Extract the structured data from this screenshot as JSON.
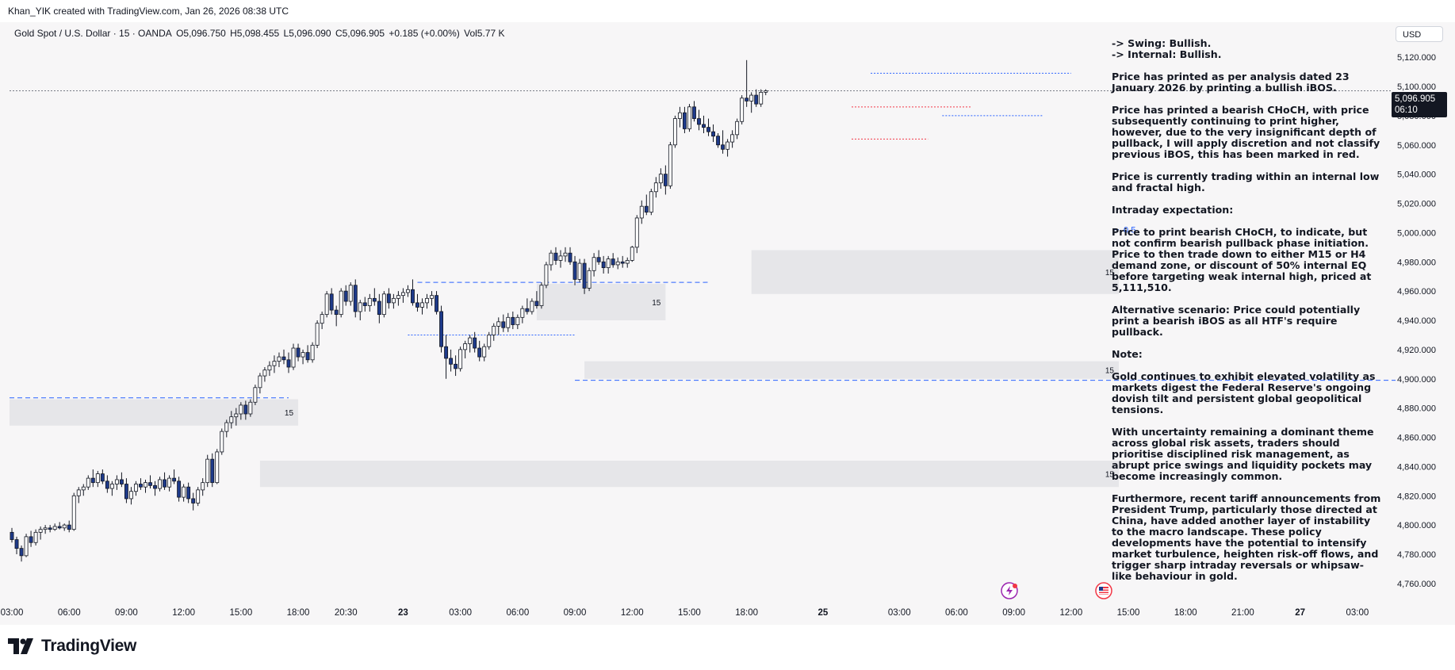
{
  "header": {
    "credit": "Khan_YIK created with TradingView.com, Jan 26, 2026 08:38 UTC"
  },
  "symbol_bar": {
    "title": "Gold Spot / U.S. Dollar · 15 · OANDA",
    "open": "O5,096.750",
    "high": "H5,098.455",
    "low": "L5,096.090",
    "close": "C5,096.905",
    "change": "+0.185 (+0.00%)",
    "volume": "Vol5.77 K"
  },
  "currency": "USD",
  "price_tag": {
    "price": "5,096.905",
    "countdown": "06:10"
  },
  "analysis_text": [
    "-> Swing: Bullish.\n-> Internal: Bullish.",
    "Price has printed as per analysis dated 23 January 2026 by printing a bullish iBOS.",
    "Price has printed a bearish CHoCH, with price subsequently continuing to print higher, however, due to the very insignificant depth of pullback, I will apply discretion and not classify previous iBOS, this has been marked in red.",
    "Price is currently trading within an internal low and fractal high.",
    "Intraday expectation:",
    "Price to print bearish CHoCH, to indicate, but not confirm bearish pullback phase initiation.  Price to then trade down to either M15 or H4 demand zone, or discount of 50% internal EQ before targeting weak internal high, priced at 5,111,510.",
    "Alternative scenario: Price could potentially print a bearish iBOS as all HTF's require pullback.",
    "Note:",
    "Gold continues to exhibit elevated volatility as markets digest the Federal Reserve's ongoing dovish tilt and persistent global geopolitical tensions.",
    "With uncertainty remaining a dominant theme across global risk assets, traders should prioritise disciplined risk management, as abrupt price swings and liquidity pockets may become increasingly common.",
    "Furthermore, recent tariff announcements from President Trump, particularly those directed at China, have added another layer of instability to the macro landscape. These policy developments have the potential to intensify market turbulence, heighten risk-off flows, and trigger sharp intraday reversals or whipsaw-like behaviour in gold."
  ],
  "logo_text": "TradingView",
  "colors": {
    "bull_candle": "#ffffff",
    "bear_candle": "#1e3a8a",
    "wick": "#131722",
    "blue_line": "#2962ff",
    "red_line": "#f23645",
    "zone_fill": "#e6e6e9"
  },
  "icons": [
    "lightning-event-icon",
    "us-flag-event-icon"
  ],
  "chart_data": {
    "type": "candlestick",
    "y_axis": {
      "ticks": [
        4760,
        4780,
        4800,
        4820,
        4840,
        4860,
        4880,
        4900,
        4920,
        4940,
        4960,
        4980,
        5000,
        5020,
        5040,
        5060,
        5080,
        5100,
        5120
      ],
      "tick_labels": [
        "4,760.000",
        "4,780.000",
        "4,800.000",
        "4,820.000",
        "4,840.000",
        "4,860.000",
        "4,880.000",
        "4,900.000",
        "4,920.000",
        "4,940.000",
        "4,960.000",
        "4,980.000",
        "5,000.000",
        "5,020.000",
        "5,040.000",
        "5,060.000",
        "5,080.000",
        "5,100.000",
        "5,120.000"
      ],
      "ylim": [
        4748,
        5132
      ]
    },
    "x_axis": {
      "tick_labels": [
        {
          "label": "03:00",
          "bar": 0
        },
        {
          "label": "06:00",
          "bar": 12
        },
        {
          "label": "09:00",
          "bar": 24
        },
        {
          "label": "12:00",
          "bar": 36
        },
        {
          "label": "15:00",
          "bar": 48
        },
        {
          "label": "18:00",
          "bar": 60
        },
        {
          "label": "20:30",
          "bar": 70
        },
        {
          "label": "23",
          "bar": 82
        },
        {
          "label": "03:00",
          "bar": 94
        },
        {
          "label": "06:00",
          "bar": 106
        },
        {
          "label": "09:00",
          "bar": 118
        },
        {
          "label": "12:00",
          "bar": 130
        },
        {
          "label": "15:00",
          "bar": 142
        },
        {
          "label": "18:00",
          "bar": 154
        },
        {
          "label": "25",
          "bar": 170
        },
        {
          "label": "03:00",
          "bar": 186
        },
        {
          "label": "06:00",
          "bar": 198
        },
        {
          "label": "09:00",
          "bar": 210
        },
        {
          "label": "12:00",
          "bar": 222
        },
        {
          "label": "15:00",
          "bar": 234
        },
        {
          "label": "18:00",
          "bar": 246
        },
        {
          "label": "21:00",
          "bar": 258
        },
        {
          "label": "27",
          "bar": 270
        },
        {
          "label": "03:00",
          "bar": 282
        }
      ],
      "xlim": [
        -0.5,
        290
      ]
    },
    "candles": [
      [
        4795,
        4798,
        4788,
        4790
      ],
      [
        4790,
        4792,
        4780,
        4784
      ],
      [
        4784,
        4786,
        4775,
        4779
      ],
      [
        4779,
        4794,
        4778,
        4792
      ],
      [
        4792,
        4796,
        4785,
        4788
      ],
      [
        4788,
        4797,
        4786,
        4795
      ],
      [
        4795,
        4799,
        4790,
        4797
      ],
      [
        4797,
        4800,
        4794,
        4798
      ],
      [
        4798,
        4800,
        4795,
        4797
      ],
      [
        4797,
        4801,
        4796,
        4799
      ],
      [
        4799,
        4802,
        4797,
        4798
      ],
      [
        4798,
        4801,
        4796,
        4800
      ],
      [
        4800,
        4803,
        4795,
        4797
      ],
      [
        4797,
        4822,
        4796,
        4820
      ],
      [
        4820,
        4826,
        4815,
        4824
      ],
      [
        4824,
        4828,
        4820,
        4826
      ],
      [
        4826,
        4834,
        4824,
        4832
      ],
      [
        4832,
        4838,
        4826,
        4829
      ],
      [
        4829,
        4837,
        4826,
        4835
      ],
      [
        4835,
        4838,
        4828,
        4830
      ],
      [
        4830,
        4834,
        4822,
        4825
      ],
      [
        4825,
        4830,
        4820,
        4828
      ],
      [
        4828,
        4834,
        4824,
        4831
      ],
      [
        4831,
        4836,
        4826,
        4828
      ],
      [
        4828,
        4832,
        4815,
        4818
      ],
      [
        4818,
        4826,
        4814,
        4823
      ],
      [
        4823,
        4830,
        4820,
        4828
      ],
      [
        4828,
        4832,
        4824,
        4826
      ],
      [
        4826,
        4831,
        4822,
        4829
      ],
      [
        4829,
        4834,
        4825,
        4827
      ],
      [
        4827,
        4830,
        4820,
        4825
      ],
      [
        4825,
        4833,
        4823,
        4831
      ],
      [
        4831,
        4836,
        4824,
        4826
      ],
      [
        4826,
        4834,
        4823,
        4832
      ],
      [
        4832,
        4838,
        4828,
        4830
      ],
      [
        4830,
        4833,
        4816,
        4819
      ],
      [
        4819,
        4828,
        4816,
        4826
      ],
      [
        4826,
        4829,
        4815,
        4818
      ],
      [
        4818,
        4822,
        4810,
        4815
      ],
      [
        4815,
        4826,
        4813,
        4824
      ],
      [
        4824,
        4832,
        4820,
        4829
      ],
      [
        4829,
        4848,
        4826,
        4845
      ],
      [
        4845,
        4849,
        4826,
        4829
      ],
      [
        4829,
        4852,
        4828,
        4850
      ],
      [
        4850,
        4866,
        4848,
        4864
      ],
      [
        4864,
        4872,
        4860,
        4870
      ],
      [
        4870,
        4878,
        4866,
        4874
      ],
      [
        4874,
        4880,
        4868,
        4876
      ],
      [
        4876,
        4884,
        4872,
        4882
      ],
      [
        4882,
        4885,
        4872,
        4876
      ],
      [
        4876,
        4886,
        4874,
        4884
      ],
      [
        4884,
        4896,
        4882,
        4894
      ],
      [
        4894,
        4904,
        4890,
        4902
      ],
      [
        4902,
        4908,
        4898,
        4906
      ],
      [
        4906,
        4912,
        4902,
        4909
      ],
      [
        4909,
        4916,
        4904,
        4912
      ],
      [
        4912,
        4918,
        4908,
        4915
      ],
      [
        4915,
        4920,
        4910,
        4913
      ],
      [
        4913,
        4918,
        4904,
        4908
      ],
      [
        4908,
        4924,
        4906,
        4921
      ],
      [
        4921,
        4924,
        4912,
        4915
      ],
      [
        4915,
        4920,
        4910,
        4918
      ],
      [
        4918,
        4923,
        4911,
        4913
      ],
      [
        4913,
        4925,
        4911,
        4923
      ],
      [
        4923,
        4940,
        4921,
        4938
      ],
      [
        4938,
        4946,
        4934,
        4944
      ],
      [
        4944,
        4960,
        4942,
        4958
      ],
      [
        4958,
        4962,
        4944,
        4947
      ],
      [
        4947,
        4950,
        4936,
        4944
      ],
      [
        4944,
        4962,
        4942,
        4960
      ],
      [
        4960,
        4964,
        4950,
        4953
      ],
      [
        4953,
        4966,
        4950,
        4964
      ],
      [
        4964,
        4968,
        4942,
        4946
      ],
      [
        4946,
        4954,
        4940,
        4952
      ],
      [
        4952,
        4956,
        4946,
        4950
      ],
      [
        4950,
        4958,
        4946,
        4955
      ],
      [
        4955,
        4962,
        4950,
        4953
      ],
      [
        4953,
        4958,
        4938,
        4944
      ],
      [
        4944,
        4960,
        4942,
        4958
      ],
      [
        4958,
        4962,
        4948,
        4952
      ],
      [
        4952,
        4958,
        4948,
        4955
      ],
      [
        4955,
        4960,
        4950,
        4957
      ],
      [
        4957,
        4962,
        4952,
        4959
      ],
      [
        4959,
        4964,
        4956,
        4961
      ],
      [
        4961,
        4968,
        4950,
        4952
      ],
      [
        4952,
        4958,
        4946,
        4949
      ],
      [
        4949,
        4955,
        4944,
        4952
      ],
      [
        4952,
        4958,
        4948,
        4955
      ],
      [
        4955,
        4960,
        4950,
        4957
      ],
      [
        4957,
        4960,
        4944,
        4946
      ],
      [
        4946,
        4950,
        4918,
        4922
      ],
      [
        4922,
        4930,
        4900,
        4914
      ],
      [
        4914,
        4920,
        4905,
        4910
      ],
      [
        4910,
        4916,
        4902,
        4907
      ],
      [
        4907,
        4922,
        4905,
        4920
      ],
      [
        4920,
        4926,
        4914,
        4924
      ],
      [
        4924,
        4930,
        4918,
        4928
      ],
      [
        4928,
        4932,
        4918,
        4921
      ],
      [
        4921,
        4926,
        4912,
        4915
      ],
      [
        4915,
        4924,
        4912,
        4922
      ],
      [
        4922,
        4932,
        4920,
        4930
      ],
      [
        4930,
        4938,
        4926,
        4936
      ],
      [
        4936,
        4942,
        4930,
        4939
      ],
      [
        4939,
        4944,
        4932,
        4935
      ],
      [
        4935,
        4945,
        4932,
        4942
      ],
      [
        4942,
        4946,
        4934,
        4937
      ],
      [
        4937,
        4944,
        4934,
        4942
      ],
      [
        4942,
        4950,
        4938,
        4948
      ],
      [
        4948,
        4955,
        4944,
        4946
      ],
      [
        4946,
        4955,
        4944,
        4953
      ],
      [
        4953,
        4960,
        4948,
        4950
      ],
      [
        4950,
        4966,
        4948,
        4964
      ],
      [
        4964,
        4980,
        4962,
        4978
      ],
      [
        4978,
        4988,
        4974,
        4986
      ],
      [
        4986,
        4990,
        4978,
        4981
      ],
      [
        4981,
        4988,
        4976,
        4984
      ],
      [
        4984,
        4990,
        4980,
        4986
      ],
      [
        4986,
        4990,
        4978,
        4980
      ],
      [
        4980,
        4984,
        4964,
        4968
      ],
      [
        4968,
        4982,
        4966,
        4979
      ],
      [
        4979,
        4982,
        4958,
        4962
      ],
      [
        4962,
        4976,
        4960,
        4974
      ],
      [
        4974,
        4986,
        4970,
        4983
      ],
      [
        4983,
        4988,
        4978,
        4980
      ],
      [
        4980,
        4984,
        4972,
        4976
      ],
      [
        4976,
        4984,
        4972,
        4982
      ],
      [
        4982,
        4986,
        4976,
        4978
      ],
      [
        4978,
        4983,
        4975,
        4980
      ],
      [
        4980,
        4984,
        4976,
        4979
      ],
      [
        4979,
        4983,
        4976,
        4981
      ],
      [
        4981,
        4991,
        4980,
        4990
      ],
      [
        4990,
        5012,
        4986,
        5010
      ],
      [
        5010,
        5022,
        5006,
        5018
      ],
      [
        5018,
        5026,
        5012,
        5014
      ],
      [
        5014,
        5030,
        5012,
        5028
      ],
      [
        5028,
        5038,
        5024,
        5034
      ],
      [
        5034,
        5044,
        5030,
        5040
      ],
      [
        5040,
        5046,
        5026,
        5032
      ],
      [
        5032,
        5062,
        5030,
        5060
      ],
      [
        5060,
        5080,
        5058,
        5078
      ],
      [
        5078,
        5086,
        5072,
        5082
      ],
      [
        5082,
        5086,
        5068,
        5071
      ],
      [
        5071,
        5088,
        5069,
        5086
      ],
      [
        5086,
        5090,
        5076,
        5078
      ],
      [
        5078,
        5084,
        5070,
        5074
      ],
      [
        5074,
        5080,
        5068,
        5072
      ],
      [
        5072,
        5078,
        5066,
        5069
      ],
      [
        5069,
        5074,
        5062,
        5066
      ],
      [
        5066,
        5068,
        5058,
        5060
      ],
      [
        5060,
        5070,
        5054,
        5057
      ],
      [
        5057,
        5064,
        5052,
        5062
      ],
      [
        5062,
        5070,
        5058,
        5067
      ],
      [
        5067,
        5078,
        5064,
        5076
      ],
      [
        5076,
        5094,
        5074,
        5092
      ],
      [
        5092,
        5118,
        5086,
        5090
      ],
      [
        5090,
        5096,
        5082,
        5094
      ],
      [
        5094,
        5098,
        5086,
        5088
      ],
      [
        5088,
        5098,
        5086,
        5096
      ],
      [
        5096,
        5098,
        5094,
        5097
      ]
    ],
    "levels": [
      {
        "name": "swing-high-top",
        "price": 5109,
        "from": 180,
        "to": 222,
        "color": "blue",
        "style": "dotted"
      },
      {
        "name": "current-price",
        "price": 5097,
        "from": -0.5,
        "to": 289,
        "color": "gray",
        "style": "dotted"
      },
      {
        "name": "bos-red",
        "price": 5086,
        "from": 176,
        "to": 201,
        "color": "red",
        "style": "dotted"
      },
      {
        "name": "internal-low-blue",
        "price": 5080,
        "from": 195,
        "to": 216,
        "color": "blue",
        "style": "dotted"
      },
      {
        "name": "red-choch-low",
        "price": 5064,
        "from": 176,
        "to": 192,
        "color": "red",
        "style": "dotted"
      },
      {
        "name": "ibos-level",
        "price": 4966,
        "from": 85,
        "to": 146,
        "color": "blue",
        "style": "dashed"
      },
      {
        "name": "low-level-blue",
        "price": 4930,
        "from": 83,
        "to": 118,
        "color": "blue",
        "style": "dotted"
      },
      {
        "name": "internal-low",
        "price": 4899,
        "from": 118,
        "to": 290,
        "color": "blue",
        "style": "dashed"
      },
      {
        "name": "old-high",
        "price": 4887,
        "from": -0.5,
        "to": 58,
        "color": "blue",
        "style": "dashed"
      }
    ],
    "zones": [
      {
        "label": "15",
        "top": 4988,
        "bottom": 4958,
        "from": 155,
        "to": 232
      },
      {
        "label": "15",
        "top": 4965,
        "bottom": 4940,
        "from": 110,
        "to": 137
      },
      {
        "label": "15",
        "top": 4912,
        "bottom": 4900,
        "from": 120,
        "to": 232
      },
      {
        "label": "15",
        "top": 4886,
        "bottom": 4868,
        "from": -0.5,
        "to": 60
      },
      {
        "label": "15",
        "top": 4844,
        "bottom": 4826,
        "from": 52,
        "to": 232
      }
    ],
    "fib": {
      "label": "0.5",
      "price": 5002,
      "bar": 233
    }
  }
}
